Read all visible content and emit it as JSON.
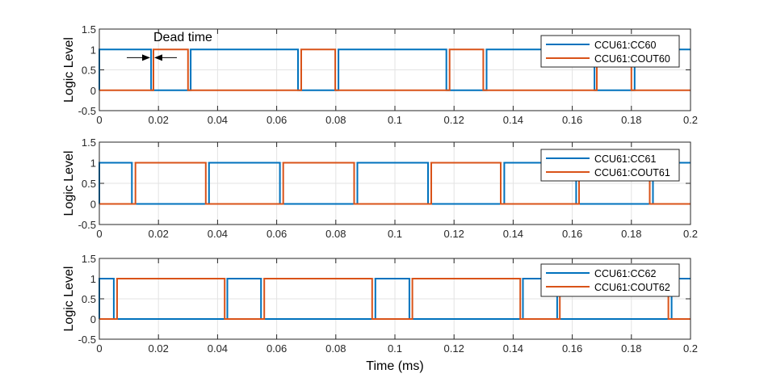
{
  "chart_data": [
    {
      "type": "line",
      "step": true,
      "ylabel": "Logic Level",
      "xlabel": "",
      "xlim": [
        0,
        0.2
      ],
      "ylim": [
        -0.5,
        1.5
      ],
      "xticks": [
        "0",
        "0.02",
        "0.04",
        "0.06",
        "0.08",
        "0.1",
        "0.12",
        "0.14",
        "0.16",
        "0.18",
        "0.2"
      ],
      "yticks": [
        "-0.5",
        "0",
        "0.5",
        "1",
        "1.5"
      ],
      "grid": true,
      "legend_position": "top-right",
      "annotation": "Dead time",
      "series": [
        {
          "name": "CCU61:CC60",
          "color": "#0072BD",
          "high_intervals": [
            [
              0,
              0.0175
            ],
            [
              0.0309,
              0.0672
            ],
            [
              0.0809,
              0.1174
            ],
            [
              0.131,
              0.1675
            ],
            [
              0.1811,
              0.2
            ]
          ]
        },
        {
          "name": "CCU61:COUT60",
          "color": "#D95319",
          "high_intervals": [
            [
              0.0183,
              0.03
            ],
            [
              0.0683,
              0.0798
            ],
            [
              0.1185,
              0.1299
            ],
            [
              0.1683,
              0.18
            ]
          ]
        }
      ]
    },
    {
      "type": "line",
      "step": true,
      "ylabel": "Logic Level",
      "xlabel": "",
      "xlim": [
        0,
        0.2
      ],
      "ylim": [
        -0.5,
        1.5
      ],
      "xticks": [
        "0",
        "0.02",
        "0.04",
        "0.06",
        "0.08",
        "0.1",
        "0.12",
        "0.14",
        "0.16",
        "0.18",
        "0.2"
      ],
      "yticks": [
        "-0.5",
        "0",
        "0.5",
        "1",
        "1.5"
      ],
      "grid": true,
      "legend_position": "top-right",
      "series": [
        {
          "name": "CCU61:CC61",
          "color": "#0072BD",
          "high_intervals": [
            [
              0,
              0.011
            ],
            [
              0.0371,
              0.0611
            ],
            [
              0.0873,
              0.1112
            ],
            [
              0.137,
              0.1613
            ],
            [
              0.1873,
              0.2
            ]
          ]
        },
        {
          "name": "CCU61:COUT61",
          "color": "#D95319",
          "high_intervals": [
            [
              0.0122,
              0.036
            ],
            [
              0.0622,
              0.0862
            ],
            [
              0.1123,
              0.1358
            ],
            [
              0.1623,
              0.1862
            ]
          ]
        }
      ]
    },
    {
      "type": "line",
      "step": true,
      "ylabel": "Logic Level",
      "xlabel": "Time (ms)",
      "xlim": [
        0,
        0.2
      ],
      "ylim": [
        -0.5,
        1.5
      ],
      "xticks": [
        "0",
        "0.02",
        "0.04",
        "0.06",
        "0.08",
        "0.1",
        "0.12",
        "0.14",
        "0.16",
        "0.18",
        "0.2"
      ],
      "yticks": [
        "-0.5",
        "0",
        "0.5",
        "1",
        "1.5"
      ],
      "grid": true,
      "legend_position": "top-right",
      "series": [
        {
          "name": "CCU61:CC62",
          "color": "#0072BD",
          "high_intervals": [
            [
              0,
              0.0049
            ],
            [
              0.0433,
              0.0547
            ],
            [
              0.0934,
              0.1049
            ],
            [
              0.1433,
              0.1549
            ],
            [
              0.1936,
              0.2
            ]
          ]
        },
        {
          "name": "CCU61:COUT62",
          "color": "#D95319",
          "high_intervals": [
            [
              0.006,
              0.0424
            ],
            [
              0.0558,
              0.0923
            ],
            [
              0.1059,
              0.1424
            ],
            [
              0.1558,
              0.1925
            ]
          ]
        }
      ]
    }
  ]
}
